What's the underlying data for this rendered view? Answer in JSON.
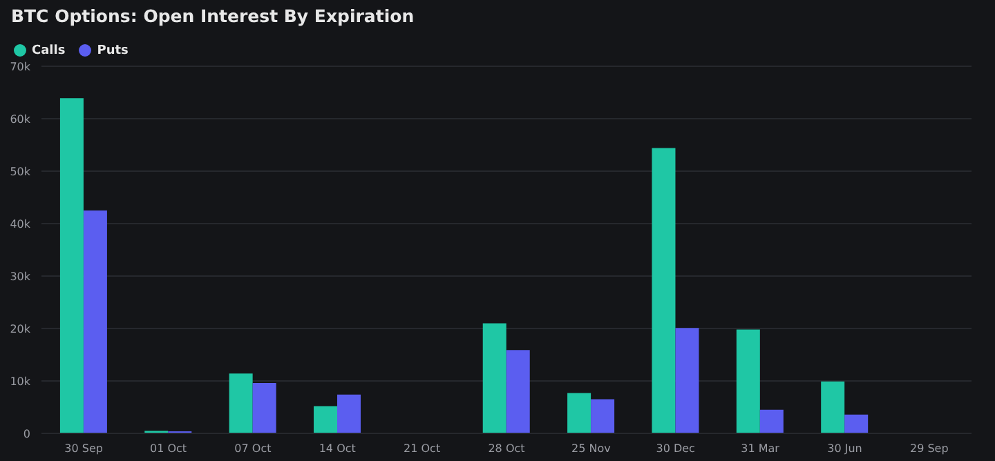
{
  "chart_data": {
    "type": "bar",
    "title": "BTC Options: Open Interest By Expiration",
    "categories": [
      "30 Sep",
      "01 Oct",
      "07 Oct",
      "14 Oct",
      "21 Oct",
      "28 Oct",
      "25 Nov",
      "30 Dec",
      "31 Mar",
      "30 Jun",
      "29 Sep"
    ],
    "series": [
      {
        "name": "Calls",
        "color": "#1fc7a5",
        "values": [
          63.9,
          0.5,
          11.4,
          5.2,
          0,
          21,
          7.7,
          54.4,
          19.8,
          9.9,
          null
        ]
      },
      {
        "name": "Puts",
        "color": "#5b5ef0",
        "values": [
          42.5,
          0.4,
          9.6,
          7.4,
          0,
          15.9,
          6.5,
          20.1,
          4.5,
          3.6,
          null
        ]
      }
    ],
    "ylim": [
      0,
      70
    ],
    "yticks": [
      {
        "value": 0,
        "label": "0"
      },
      {
        "value": 10,
        "label": "10k"
      },
      {
        "value": 20,
        "label": "20k"
      },
      {
        "value": 30,
        "label": "30k"
      },
      {
        "value": 40,
        "label": "40k"
      },
      {
        "value": 50,
        "label": "50k"
      },
      {
        "value": 60,
        "label": "60k"
      },
      {
        "value": 70,
        "label": "70k"
      }
    ],
    "grid": "y",
    "legend": "top left"
  }
}
